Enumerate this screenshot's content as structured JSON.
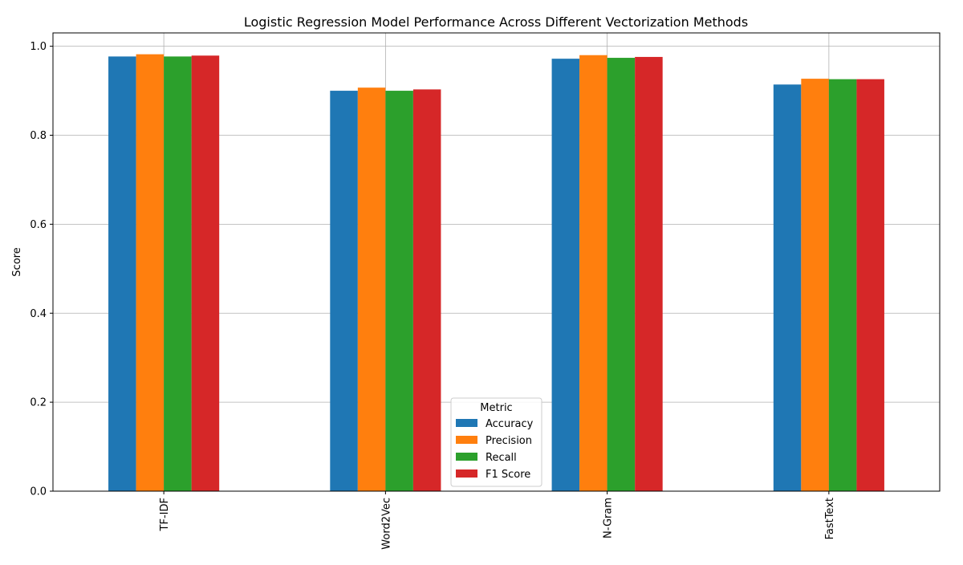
{
  "chart_data": {
    "type": "bar",
    "title": "Logistic Regression Model Performance Across Different Vectorization Methods",
    "xlabel": "",
    "ylabel": "Score",
    "categories": [
      "TF-IDF",
      "Word2Vec",
      "N-Gram",
      "FastText"
    ],
    "series": [
      {
        "name": "Accuracy",
        "color": "#1f77b4",
        "values": [
          0.977,
          0.9,
          0.972,
          0.914
        ]
      },
      {
        "name": "Precision",
        "color": "#ff7f0e",
        "values": [
          0.982,
          0.907,
          0.98,
          0.927
        ]
      },
      {
        "name": "Recall",
        "color": "#2ca02c",
        "values": [
          0.977,
          0.9,
          0.974,
          0.926
        ]
      },
      {
        "name": "F1 Score",
        "color": "#d62728",
        "values": [
          0.979,
          0.903,
          0.976,
          0.926
        ]
      }
    ],
    "ylim": [
      0,
      1.03
    ],
    "yticks": [
      0.0,
      0.2,
      0.4,
      0.6,
      0.8,
      1.0
    ],
    "ytick_labels": [
      "0.0",
      "0.2",
      "0.4",
      "0.6",
      "0.8",
      "1.0"
    ],
    "grid": true,
    "legend": {
      "title": "Metric",
      "placement": "lower-center"
    }
  }
}
